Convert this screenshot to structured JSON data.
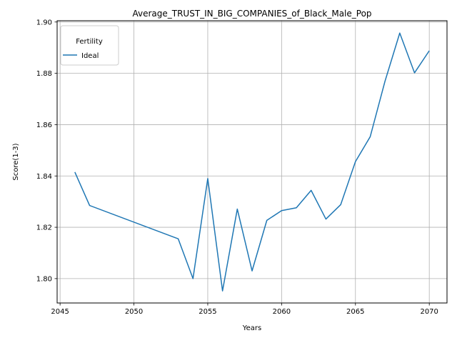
{
  "chart_data": {
    "type": "line",
    "title": "Average_TRUST_IN_BIG_COMPANIES_of_Black_Male_Pop",
    "xlabel": "Years",
    "ylabel": "Score(1-3)",
    "xlim": [
      2044.8,
      2071.2
    ],
    "ylim": [
      1.7905,
      1.9005
    ],
    "xticks": [
      2045,
      2050,
      2055,
      2060,
      2065,
      2070
    ],
    "yticks": [
      1.8,
      1.82,
      1.84,
      1.86,
      1.88,
      1.9
    ],
    "xtick_labels": [
      "2045",
      "2050",
      "2055",
      "2060",
      "2065",
      "2070"
    ],
    "ytick_labels": [
      "1.80",
      "1.82",
      "1.84",
      "1.86",
      "1.88",
      "1.90"
    ],
    "grid": true,
    "legend": {
      "title": "Fertility",
      "position": "top-left"
    },
    "series": [
      {
        "name": "Ideal",
        "color": "#1f77b4",
        "x": [
          2046,
          2047,
          2053,
          2054,
          2055,
          2056,
          2057,
          2058,
          2059,
          2060,
          2061,
          2062,
          2063,
          2064,
          2065,
          2066,
          2067,
          2068,
          2069,
          2070
        ],
        "y": [
          1.8415,
          1.8285,
          1.8155,
          1.8,
          1.839,
          1.7952,
          1.8271,
          1.803,
          1.8227,
          1.8265,
          1.8276,
          1.8344,
          1.8232,
          1.8288,
          1.8456,
          1.8553,
          1.8769,
          1.8957,
          1.8802,
          1.8888
        ]
      }
    ]
  }
}
